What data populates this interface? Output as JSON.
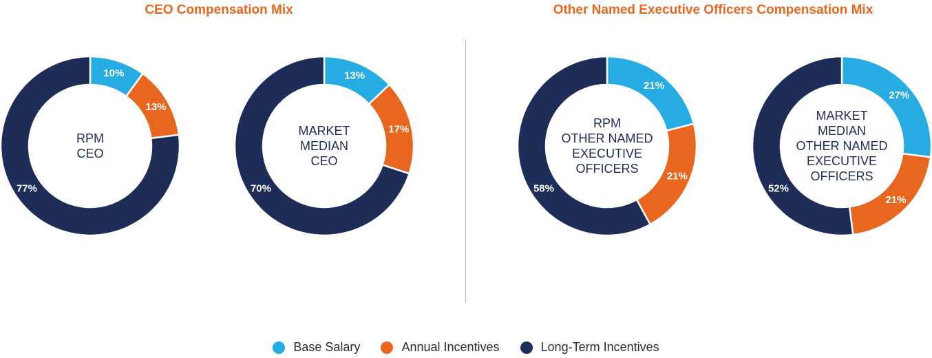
{
  "section_titles": {
    "ceo": "CEO Compensation Mix",
    "neo": "Other Named Executive Officers Compensation Mix"
  },
  "colors": {
    "base_salary": "#26ACE2",
    "annual_incentives": "#E8661E",
    "long_term_incentives": "#1E2D57",
    "title": "#E8661E"
  },
  "legend": [
    {
      "label": "Base Salary",
      "color": "#26ACE2"
    },
    {
      "label": "Annual Incentives",
      "color": "#E8661E"
    },
    {
      "label": "Long-Term Incentives",
      "color": "#1E2D57"
    }
  ],
  "chart_data": [
    {
      "type": "pie",
      "variant": "donut",
      "title": "CEO Compensation Mix",
      "center_label": [
        "RPM",
        "CEO"
      ],
      "categories": [
        "Base Salary",
        "Annual Incentives",
        "Long-Term Incentives"
      ],
      "values": [
        10,
        13,
        77
      ],
      "value_labels": [
        "10%",
        "13%",
        "77%"
      ]
    },
    {
      "type": "pie",
      "variant": "donut",
      "title": "CEO Compensation Mix",
      "center_label": [
        "MARKET",
        "MEDIAN",
        "CEO"
      ],
      "categories": [
        "Base Salary",
        "Annual Incentives",
        "Long-Term Incentives"
      ],
      "values": [
        13,
        17,
        70
      ],
      "value_labels": [
        "13%",
        "17%",
        "70%"
      ]
    },
    {
      "type": "pie",
      "variant": "donut",
      "title": "Other Named Executive Officers Compensation Mix",
      "center_label": [
        "RPM",
        "OTHER NAMED",
        "EXECUTIVE",
        "OFFICERS"
      ],
      "categories": [
        "Base Salary",
        "Annual Incentives",
        "Long-Term Incentives"
      ],
      "values": [
        21,
        21,
        58
      ],
      "value_labels": [
        "21%",
        "21%",
        "58%"
      ]
    },
    {
      "type": "pie",
      "variant": "donut",
      "title": "Other Named Executive Officers Compensation Mix",
      "center_label": [
        "MARKET",
        "MEDIAN",
        "OTHER NAMED",
        "EXECUTIVE",
        "OFFICERS"
      ],
      "categories": [
        "Base Salary",
        "Annual Incentives",
        "Long-Term Incentives"
      ],
      "values": [
        27,
        21,
        52
      ],
      "value_labels": [
        "27%",
        "21%",
        "52%"
      ]
    }
  ]
}
